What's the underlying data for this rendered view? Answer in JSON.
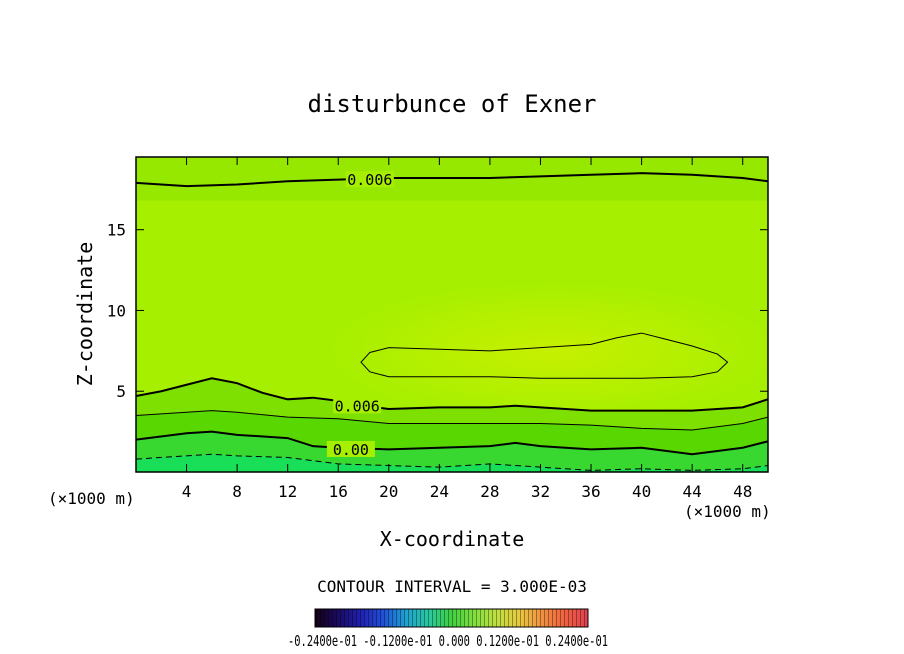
{
  "chart_data": {
    "type": "contour",
    "title": "disturbunce of Exner",
    "xlabel": "X-coordinate",
    "ylabel": "Z-coordinate",
    "x_unit_label": "(×1000 m)",
    "y_unit_label": "(×1000 m)",
    "xlim": [
      0,
      50
    ],
    "ylim": [
      0,
      19.5
    ],
    "x_ticks": [
      4,
      8,
      12,
      16,
      20,
      24,
      28,
      32,
      36,
      40,
      44,
      48
    ],
    "y_ticks": [
      5,
      10,
      15
    ],
    "contour_interval_text": "CONTOUR INTERVAL = 3.000E-03",
    "contour_labels": [
      {
        "text": "0.006",
        "x": 18.5,
        "z": 18.0
      },
      {
        "text": "0.006",
        "x": 17.5,
        "z": 4.0
      },
      {
        "text": "0.00",
        "x": 17.0,
        "z": 1.3
      }
    ],
    "contours": [
      {
        "level": 0.006,
        "style": "thick",
        "x": [
          0,
          4,
          8,
          12,
          16,
          20,
          24,
          28,
          32,
          36,
          40,
          44,
          48,
          50
        ],
        "z": [
          17.9,
          17.7,
          17.8,
          18.0,
          18.1,
          18.2,
          18.2,
          18.2,
          18.3,
          18.4,
          18.5,
          18.4,
          18.2,
          18.0
        ]
      },
      {
        "level": 0.009,
        "style": "thin",
        "closed": true,
        "x": [
          17.8,
          18.5,
          20,
          24,
          28,
          32,
          36,
          38,
          40,
          42,
          44,
          46,
          46.8,
          46,
          44,
          40,
          36,
          32,
          28,
          24,
          20,
          18.5
        ],
        "z": [
          6.8,
          7.4,
          7.7,
          7.6,
          7.5,
          7.7,
          7.9,
          8.3,
          8.6,
          8.2,
          7.8,
          7.3,
          6.8,
          6.2,
          5.9,
          5.8,
          5.8,
          5.8,
          5.9,
          5.9,
          5.9,
          6.2
        ]
      },
      {
        "level": 0.006,
        "style": "thick",
        "x": [
          0,
          2,
          4,
          6,
          8,
          10,
          12,
          14,
          16,
          18,
          20,
          24,
          28,
          30,
          32,
          36,
          40,
          44,
          48,
          50
        ],
        "z": [
          4.7,
          5.0,
          5.4,
          5.8,
          5.5,
          4.9,
          4.5,
          4.6,
          4.4,
          4.1,
          3.9,
          4.0,
          4.0,
          4.1,
          4.0,
          3.8,
          3.8,
          3.8,
          4.0,
          4.5
        ]
      },
      {
        "level": 0.003,
        "style": "thin",
        "x": [
          0,
          4,
          6,
          8,
          12,
          16,
          20,
          24,
          28,
          32,
          36,
          40,
          44,
          48,
          50
        ],
        "z": [
          3.5,
          3.7,
          3.8,
          3.7,
          3.4,
          3.3,
          3.0,
          3.0,
          3.0,
          3.0,
          2.9,
          2.7,
          2.6,
          3.0,
          3.4
        ]
      },
      {
        "level": 0.0,
        "style": "thick",
        "x": [
          0,
          4,
          6,
          8,
          12,
          14,
          16,
          20,
          24,
          28,
          30,
          32,
          36,
          40,
          44,
          48,
          50
        ],
        "z": [
          2.0,
          2.4,
          2.5,
          2.3,
          2.1,
          1.6,
          1.5,
          1.4,
          1.5,
          1.6,
          1.8,
          1.6,
          1.4,
          1.5,
          1.1,
          1.5,
          1.9
        ]
      },
      {
        "level": -0.003,
        "style": "dashed",
        "x": [
          0,
          4,
          6,
          8,
          12,
          16,
          20,
          24,
          28,
          32,
          36,
          40,
          44,
          48,
          50
        ],
        "z": [
          0.8,
          1.0,
          1.1,
          1.0,
          0.9,
          0.5,
          0.4,
          0.3,
          0.5,
          0.3,
          0.1,
          0.2,
          0.1,
          0.2,
          0.4
        ]
      }
    ],
    "fill_bands": [
      {
        "upper_z_line": 0,
        "color": "#98ec00"
      },
      {
        "upper_z_line": 2,
        "color": "#7ee000"
      },
      {
        "upper_z_line": 3,
        "color": "#58d800"
      },
      {
        "upper_z_line": 4,
        "color": "#38d830"
      },
      {
        "upper_z_line": 5,
        "color": "#18de58"
      }
    ],
    "colors": {
      "background_fill": "#a6ef00",
      "bright_core": "#c6f000",
      "top_band": "#96e800",
      "colorbar_low": "#140030",
      "colorbar_mid": "#40d040",
      "colorbar_high": "#f07040"
    },
    "colorbar": {
      "label_text": "-0.2400e-01 -0.1200e-01 0.000 0.1200e-01 0.2400e-01",
      "stops": [
        "#140014",
        "#1a0a60",
        "#2020b0",
        "#2050d8",
        "#20a0d0",
        "#28c8a0",
        "#40d040",
        "#80e040",
        "#c0e040",
        "#e8c840",
        "#f09040",
        "#f06040",
        "#e04050"
      ]
    }
  }
}
